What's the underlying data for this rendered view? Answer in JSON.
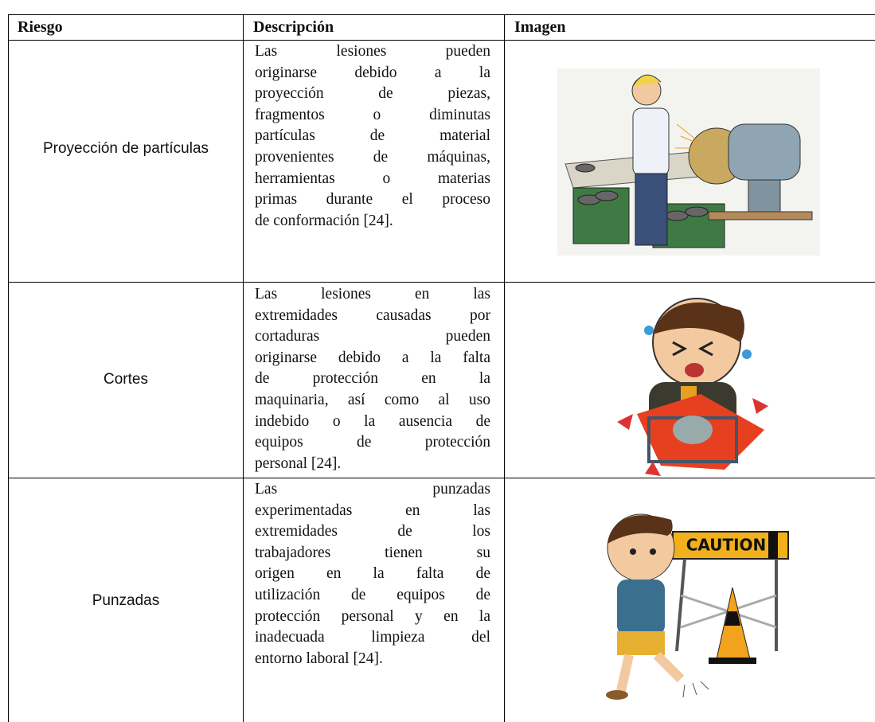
{
  "table": {
    "headers": [
      "Riesgo",
      "Descripción",
      "Imagen"
    ],
    "rows": [
      {
        "risk": "Proyección de partículas",
        "description": [
          "Las lesiones pueden",
          "originarse debido a la",
          "proyección de piezas,",
          "fragmentos o diminutas",
          "partículas de material",
          "provenientes de máquinas,",
          "herramientas o materias",
          "primas durante el proceso",
          "de conformación [24]."
        ]
      },
      {
        "risk": "Cortes",
        "description": [
          "Las lesiones en las",
          "extremidades causadas por",
          "cortaduras pueden",
          "originarse debido a la falta",
          "de protección en la",
          "maquinaria, así como al uso",
          "indebido o la ausencia de",
          "equipos de protección",
          "personal [24]."
        ]
      },
      {
        "risk": "Punzadas",
        "description": [
          "Las punzadas",
          "experimentadas en las",
          "extremidades de los",
          "trabajadores tienen su",
          "origen en la falta de",
          "utilización de equipos de",
          "protección personal y en la",
          "inadecuada limpieza del",
          "entorno laboral [24]."
        ],
        "image_label": "CAUTION"
      }
    ]
  }
}
